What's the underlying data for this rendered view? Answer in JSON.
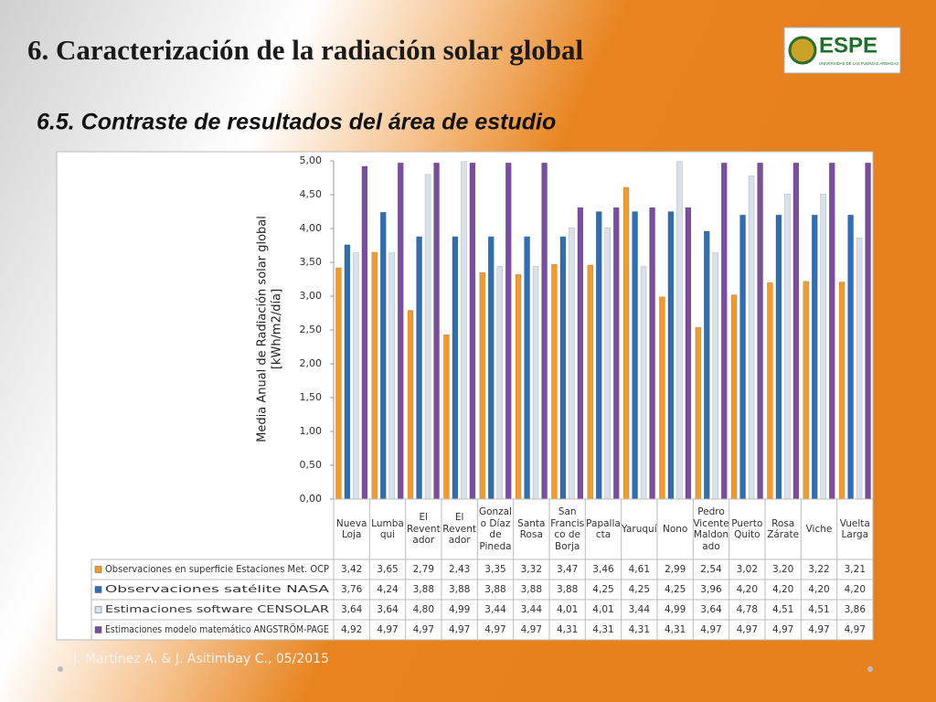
{
  "title": "6. Caracterización de la radiación solar global",
  "subtitle": "6.5. Contraste de resultados del área de estudio",
  "logo": {
    "name": "ESPE",
    "caption": "UNIVERSIDAD DE LAS FUERZAS ARMADAS"
  },
  "footer": "J. Martínez A. & J. Asitimbay C., 05/2015",
  "chart_data": {
    "type": "bar",
    "y_label": [
      "Media Anual de Radiación solar global",
      "[kWh/m2/día]"
    ],
    "categories": [
      "Nueva Loja",
      "Lumba qui",
      "El Revent ador",
      "El Revent ador",
      "Gonzal o Díaz de Pineda",
      "Santa Rosa",
      "San Francis co de Borja",
      "Papalla cta",
      "Yaruquí",
      "Nono",
      "Pedro Vicente Maldon ado",
      "Puerto Quito",
      "Rosa Zárate",
      "Viche",
      "Vuelta Larga"
    ],
    "series": [
      {
        "name": "Observaciones en superficie Estaciones Met. OCP",
        "color": "#f39a2b",
        "values": [
          3.42,
          3.65,
          2.79,
          2.43,
          3.35,
          3.32,
          3.47,
          3.46,
          4.61,
          2.99,
          2.54,
          3.02,
          3.2,
          3.22,
          3.21
        ],
        "value_labels": [
          "3,42",
          "3,65",
          "2,79",
          "2,43",
          "3,35",
          "3,32",
          "3,47",
          "3,46",
          "4,61",
          "2,99",
          "2,54",
          "3,02",
          "3,20",
          "3,22",
          "3,21"
        ]
      },
      {
        "name": "Observaciones satélite NASA",
        "color": "#2f6db5",
        "values": [
          3.76,
          4.24,
          3.88,
          3.88,
          3.88,
          3.88,
          3.88,
          4.25,
          4.25,
          4.25,
          3.96,
          4.2,
          4.2,
          4.2,
          4.2
        ],
        "value_labels": [
          "3,76",
          "4,24",
          "3,88",
          "3,88",
          "3,88",
          "3,88",
          "3,88",
          "4,25",
          "4,25",
          "4,25",
          "3,96",
          "4,20",
          "4,20",
          "4,20",
          "4,20"
        ]
      },
      {
        "name": "Estimaciones software CENSOLAR",
        "color": "#d9e2ec",
        "values": [
          3.64,
          3.64,
          4.8,
          4.99,
          3.44,
          3.44,
          4.01,
          4.01,
          3.44,
          4.99,
          3.64,
          4.78,
          4.51,
          4.51,
          3.86
        ],
        "value_labels": [
          "3,64",
          "3,64",
          "4,80",
          "4,99",
          "3,44",
          "3,44",
          "4,01",
          "4,01",
          "3,44",
          "4,99",
          "3,64",
          "4,78",
          "4,51",
          "4,51",
          "3,86"
        ]
      },
      {
        "name": "Estimaciones modelo matemático ANGSTRÖM-PAGE",
        "color": "#7a4d9e",
        "values": [
          4.92,
          4.97,
          4.97,
          4.97,
          4.97,
          4.97,
          4.31,
          4.31,
          4.31,
          4.31,
          4.97,
          4.97,
          4.97,
          4.97,
          4.97
        ],
        "value_labels": [
          "4,92",
          "4,97",
          "4,97",
          "4,97",
          "4,97",
          "4,97",
          "4,31",
          "4,31",
          "4,31",
          "4,31",
          "4,97",
          "4,97",
          "4,97",
          "4,97",
          "4,97"
        ]
      }
    ],
    "ylim": [
      0,
      5
    ],
    "yticks": [
      {
        "value": 0,
        "label": "0,00"
      },
      {
        "value": 0.5,
        "label": "0,50"
      },
      {
        "value": 1,
        "label": "1,00"
      },
      {
        "value": 1.5,
        "label": "1,50"
      },
      {
        "value": 2,
        "label": "2,00"
      },
      {
        "value": 2.5,
        "label": "2,50"
      },
      {
        "value": 3,
        "label": "3,00"
      },
      {
        "value": 3.5,
        "label": "3,50"
      },
      {
        "value": 4,
        "label": "4,00"
      },
      {
        "value": 4.5,
        "label": "4,50"
      },
      {
        "value": 5,
        "label": "5,00"
      }
    ],
    "grid": false
  }
}
